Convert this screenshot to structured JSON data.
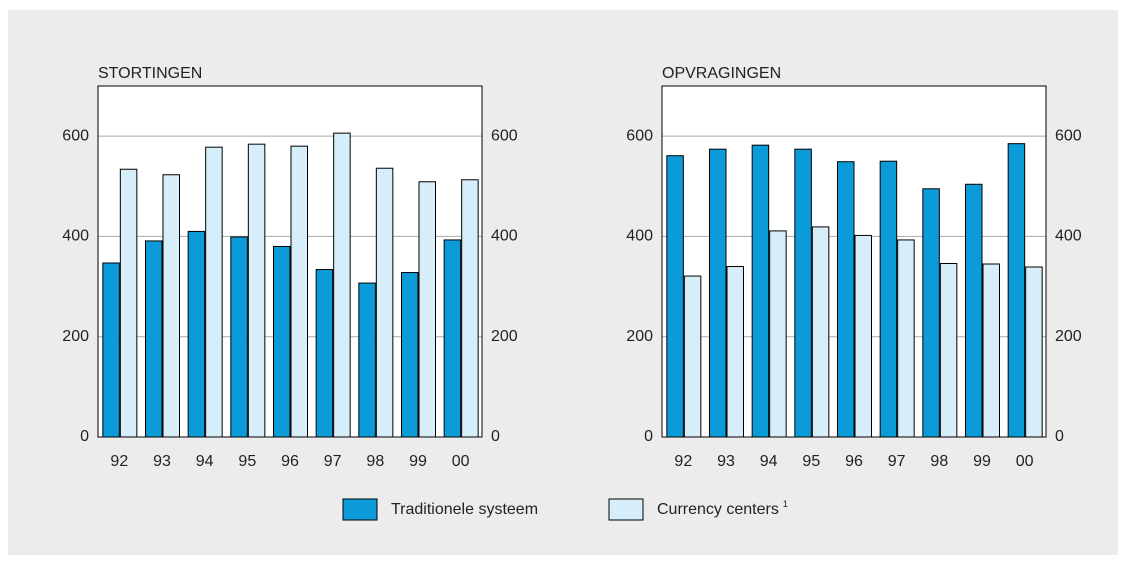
{
  "legend": [
    {
      "name": "Traditionele systeem",
      "color": "#0a9bd8"
    },
    {
      "name": "Currency centers",
      "color": "#d6edfa",
      "note": "1"
    }
  ],
  "chart_data": [
    {
      "type": "bar",
      "title": "STORTINGEN",
      "categories": [
        "92",
        "93",
        "94",
        "95",
        "96",
        "97",
        "98",
        "99",
        "00"
      ],
      "series": [
        {
          "values": [
            347,
            391,
            410,
            399,
            380,
            334,
            307,
            328,
            393
          ]
        },
        {
          "values": [
            534,
            523,
            578,
            584,
            580,
            606,
            536,
            509,
            513
          ]
        }
      ],
      "ylim": [
        0,
        700
      ],
      "yticks": [
        0,
        200,
        400,
        600
      ],
      "y2lim": [
        0,
        700
      ],
      "y2ticks": [
        0,
        200,
        400,
        600
      ],
      "grid": true
    },
    {
      "type": "bar",
      "title": "OPVRAGINGEN",
      "categories": [
        "92",
        "93",
        "94",
        "95",
        "96",
        "97",
        "98",
        "99",
        "00"
      ],
      "series": [
        {
          "values": [
            561,
            574,
            582,
            574,
            549,
            550,
            495,
            504,
            585
          ]
        },
        {
          "values": [
            321,
            340,
            411,
            419,
            402,
            393,
            346,
            345,
            339
          ]
        }
      ],
      "ylim": [
        0,
        700
      ],
      "yticks": [
        0,
        200,
        400,
        600
      ],
      "y2lim": [
        0,
        700
      ],
      "y2ticks": [
        0,
        200,
        400,
        600
      ],
      "grid": true
    }
  ]
}
